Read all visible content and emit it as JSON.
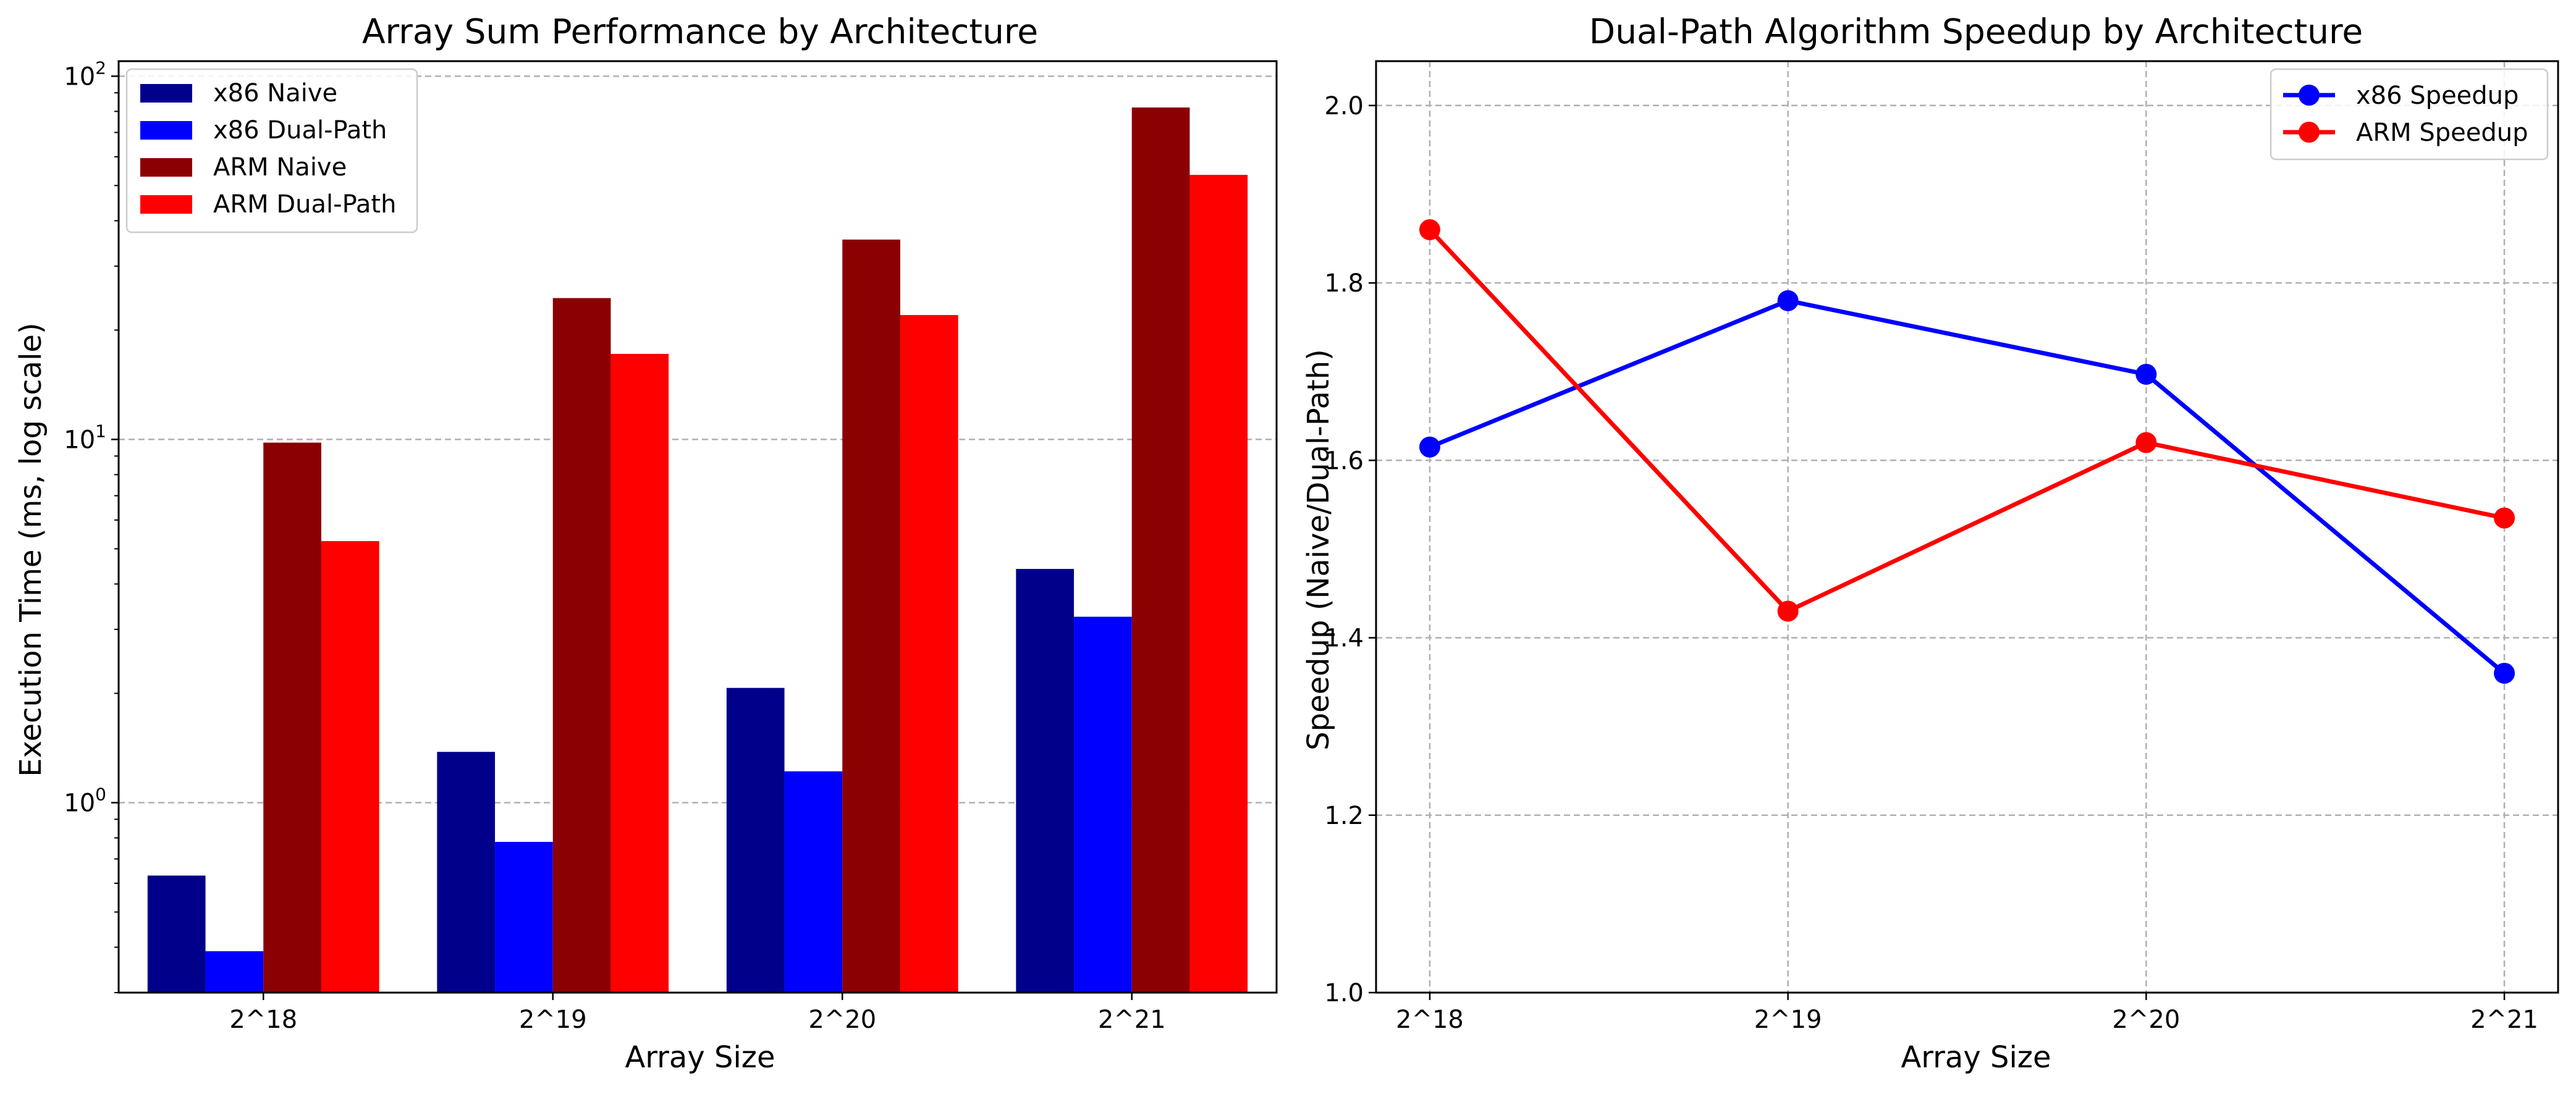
{
  "chart_data": [
    {
      "type": "bar",
      "title": "Array Sum Performance by Architecture",
      "xlabel": "Array Size",
      "ylabel": "Execution Time (ms, log scale)",
      "yscale": "log",
      "ylim": [
        0.3,
        110
      ],
      "ytick_values": [
        1,
        10,
        100
      ],
      "ytick_labels": [
        "10^0",
        "10^1",
        "10^2"
      ],
      "grid": "y-dashed",
      "legend_position": "top-left",
      "categories": [
        "2^18",
        "2^19",
        "2^20",
        "2^21"
      ],
      "series": [
        {
          "name": "x86 Naive",
          "color": "#00008b",
          "values": [
            0.63,
            1.38,
            2.07,
            4.4
          ]
        },
        {
          "name": "x86 Dual-Path",
          "color": "#0000ff",
          "values": [
            0.39,
            0.78,
            1.22,
            3.25
          ]
        },
        {
          "name": "ARM Naive",
          "color": "#8b0000",
          "values": [
            9.8,
            24.5,
            35.5,
            82.0
          ]
        },
        {
          "name": "ARM Dual-Path",
          "color": "#ff0000",
          "values": [
            5.25,
            17.2,
            22.0,
            53.5
          ]
        }
      ]
    },
    {
      "type": "line",
      "title": "Dual-Path Algorithm Speedup by Architecture",
      "xlabel": "Array Size",
      "ylabel": "Speedup (Naive/Dual-Path)",
      "ylim": [
        1.0,
        2.05
      ],
      "ytick_values": [
        1.0,
        1.2,
        1.4,
        1.6,
        1.8,
        2.0
      ],
      "ytick_labels": [
        "1.0",
        "1.2",
        "1.4",
        "1.6",
        "1.8",
        "2.0"
      ],
      "grid": "both-dashed",
      "legend_position": "top-right",
      "categories": [
        "2^18",
        "2^19",
        "2^20",
        "2^21"
      ],
      "series": [
        {
          "name": "x86 Speedup",
          "color": "#0000ff",
          "values": [
            1.615,
            1.78,
            1.697,
            1.36
          ]
        },
        {
          "name": "ARM Speedup",
          "color": "#ff0000",
          "values": [
            1.86,
            1.43,
            1.62,
            1.535
          ]
        }
      ]
    }
  ]
}
